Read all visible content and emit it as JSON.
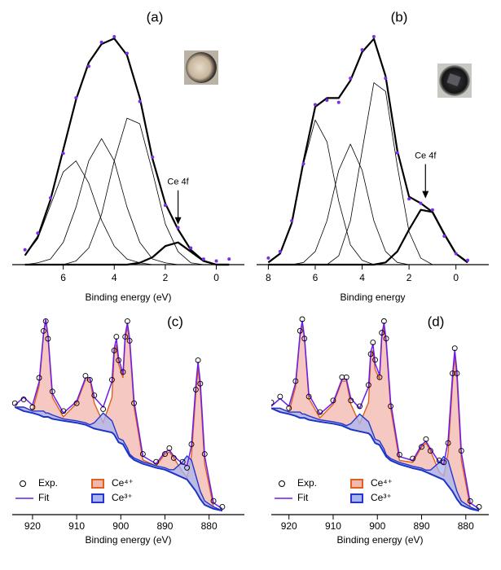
{
  "chart_data": [
    {
      "type": "line",
      "title": "(a)",
      "xlabel": "Binding energy (eV)",
      "xlim": [
        8.0,
        -1.1
      ],
      "xticks": [
        6,
        4,
        2,
        0
      ],
      "annotation": {
        "text": "Ce 4f",
        "x": 1.5
      },
      "x": [
        7.5,
        7.0,
        6.5,
        6.0,
        5.5,
        5.0,
        4.5,
        4.0,
        3.5,
        3.0,
        2.5,
        2.0,
        1.5,
        1.0,
        0.5,
        0.0,
        -0.5
      ],
      "series": [
        {
          "kind": "scatter",
          "color": "#7a2ee8",
          "values": [
            0.08,
            0.17,
            0.36,
            0.6,
            0.9,
            1.07,
            1.2,
            1.23,
            1.14,
            0.88,
            0.58,
            0.32,
            0.2,
            0.09,
            0.03,
            0.02,
            0.03
          ]
        },
        {
          "kind": "line",
          "color": "#000000",
          "width": 2.2,
          "values": [
            0.05,
            0.15,
            0.35,
            0.62,
            0.89,
            1.09,
            1.19,
            1.22,
            1.13,
            0.9,
            0.57,
            0.33,
            0.19,
            0.08,
            0.02,
            0,
            0
          ]
        },
        {
          "kind": "line",
          "color": "#000000",
          "width": 0.8,
          "values": [
            0.05,
            0.14,
            0.32,
            0.5,
            0.56,
            0.44,
            0.24,
            0.1,
            0.03,
            0.01,
            0,
            0,
            0,
            0,
            0,
            0,
            0
          ]
        },
        {
          "kind": "line",
          "color": "#000000",
          "width": 0.8,
          "values": [
            0,
            0.01,
            0.03,
            0.12,
            0.31,
            0.56,
            0.68,
            0.56,
            0.31,
            0.12,
            0.03,
            0.01,
            0,
            0,
            0,
            0,
            0
          ]
        },
        {
          "kind": "line",
          "color": "#000000",
          "width": 0.8,
          "values": [
            0,
            0,
            0,
            0,
            0.02,
            0.09,
            0.27,
            0.56,
            0.79,
            0.76,
            0.5,
            0.22,
            0.07,
            0.01,
            0,
            0,
            0
          ]
        },
        {
          "kind": "line",
          "color": "#000000",
          "width": 2.2,
          "values": [
            0,
            0,
            0,
            0,
            0,
            0,
            0,
            0,
            0,
            0.01,
            0.04,
            0.1,
            0.12,
            0.07,
            0.02,
            0,
            0
          ]
        }
      ]
    },
    {
      "type": "line",
      "title": "(b)",
      "xlabel": "Binding energy",
      "xlim": [
        8.5,
        -1.4
      ],
      "xticks": [
        8,
        6,
        4,
        2,
        0
      ],
      "annotation": {
        "text": "Ce 4f",
        "x": 1.3
      },
      "x": [
        8.0,
        7.5,
        7.0,
        6.5,
        6.0,
        5.5,
        5.0,
        4.5,
        4.0,
        3.5,
        3.0,
        2.5,
        2.0,
        1.5,
        1.0,
        0.5,
        0.0,
        -0.5
      ],
      "series": [
        {
          "kind": "scatter",
          "color": "#7a2ee8",
          "values": [
            0.03,
            0.06,
            0.2,
            0.46,
            0.73,
            0.75,
            0.74,
            0.85,
            0.98,
            1.04,
            0.85,
            0.51,
            0.3,
            0.28,
            0.25,
            0.13,
            0.05,
            0.02
          ]
        },
        {
          "kind": "line",
          "color": "#000000",
          "width": 2.2,
          "values": [
            0.01,
            0.05,
            0.19,
            0.47,
            0.72,
            0.76,
            0.76,
            0.84,
            0.97,
            1.03,
            0.86,
            0.52,
            0.31,
            0.28,
            0.24,
            0.14,
            0.05,
            0.01
          ]
        },
        {
          "kind": "line",
          "color": "#000000",
          "width": 0.8,
          "values": [
            0.01,
            0.05,
            0.19,
            0.46,
            0.66,
            0.56,
            0.29,
            0.09,
            0.02,
            0,
            0,
            0,
            0,
            0,
            0,
            0,
            0,
            0
          ]
        },
        {
          "kind": "line",
          "color": "#000000",
          "width": 0.8,
          "values": [
            0,
            0,
            0,
            0.01,
            0.06,
            0.2,
            0.43,
            0.55,
            0.43,
            0.2,
            0.06,
            0.01,
            0,
            0,
            0,
            0,
            0,
            0
          ]
        },
        {
          "kind": "line",
          "color": "#000000",
          "width": 0.8,
          "values": [
            0,
            0,
            0,
            0,
            0,
            0,
            0.04,
            0.2,
            0.52,
            0.83,
            0.79,
            0.45,
            0.15,
            0.03,
            0,
            0,
            0,
            0
          ]
        },
        {
          "kind": "line",
          "color": "#000000",
          "width": 2.2,
          "values": [
            0,
            0,
            0,
            0,
            0,
            0,
            0,
            0,
            0,
            0,
            0.01,
            0.06,
            0.16,
            0.25,
            0.24,
            0.14,
            0.05,
            0.01
          ]
        }
      ]
    },
    {
      "type": "line",
      "title": "(c)",
      "xlabel": "Binding energy (eV)",
      "xlim": [
        924.6,
        872
      ],
      "xticks": [
        920,
        910,
        900,
        890,
        880
      ],
      "x": [
        924,
        922,
        920,
        918.5,
        917.5,
        917,
        916.5,
        915.5,
        913,
        910,
        908,
        907,
        906,
        904,
        902,
        901.5,
        901,
        900.5,
        899.5,
        899,
        898.5,
        898,
        897,
        895,
        892,
        890,
        889,
        888,
        886,
        885,
        884,
        883,
        882.5,
        882,
        881,
        879,
        877
      ],
      "series": [
        {
          "name": "Exp.",
          "kind": "scatter",
          "color": "#000000",
          "values": [
            0.57,
            0.59,
            0.55,
            0.7,
            0.94,
            0.99,
            0.9,
            0.63,
            0.53,
            0.57,
            0.71,
            0.69,
            0.61,
            0.54,
            0.69,
            0.84,
            0.91,
            0.79,
            0.73,
            0.91,
            0.99,
            0.89,
            0.57,
            0.31,
            0.27,
            0.31,
            0.34,
            0.29,
            0.27,
            0.24,
            0.36,
            0.64,
            0.79,
            0.67,
            0.31,
            0.07,
            0.04
          ]
        },
        {
          "name": "Fit",
          "kind": "line",
          "color": "#6a1cf0",
          "width": 1.5,
          "values": [
            0.56,
            0.6,
            0.56,
            0.68,
            0.93,
            1.0,
            0.92,
            0.62,
            0.52,
            0.58,
            0.7,
            0.7,
            0.6,
            0.55,
            0.68,
            0.85,
            0.9,
            0.8,
            0.72,
            0.92,
            0.98,
            0.9,
            0.58,
            0.3,
            0.26,
            0.32,
            0.33,
            0.3,
            0.26,
            0.25,
            0.35,
            0.66,
            0.78,
            0.68,
            0.3,
            0.06,
            0.03
          ]
        },
        {
          "name": "Ce⁴⁺",
          "kind": "area",
          "color": "#e0601c",
          "fill": "#f2b7ae",
          "fill_to": 4,
          "values": [
            0.55,
            0.55,
            0.53,
            0.66,
            0.92,
            0.99,
            0.91,
            0.6,
            0.5,
            0.57,
            0.69,
            0.69,
            0.57,
            0.47,
            0.6,
            0.82,
            0.87,
            0.77,
            0.7,
            0.9,
            0.96,
            0.88,
            0.55,
            0.28,
            0.25,
            0.31,
            0.32,
            0.29,
            0.22,
            0.19,
            0.3,
            0.62,
            0.75,
            0.64,
            0.26,
            0.04,
            0.02
          ]
        },
        {
          "name": "Ce³⁺",
          "kind": "area",
          "color": "#2536d0",
          "fill": "#aab4ee",
          "fill_to": 4,
          "values": [
            0.55,
            0.55,
            0.53,
            0.53,
            0.53,
            0.52,
            0.52,
            0.51,
            0.49,
            0.48,
            0.47,
            0.46,
            0.47,
            0.52,
            0.48,
            0.45,
            0.42,
            0.39,
            0.38,
            0.36,
            0.34,
            0.31,
            0.29,
            0.27,
            0.25,
            0.24,
            0.23,
            0.23,
            0.27,
            0.3,
            0.28,
            0.2,
            0.16,
            0.12,
            0.07,
            0.04,
            0.02
          ]
        },
        {
          "kind": "line",
          "color": "#1a35c8",
          "width": 2,
          "values": [
            0.55,
            0.53,
            0.52,
            0.51,
            0.5,
            0.5,
            0.5,
            0.49,
            0.48,
            0.47,
            0.46,
            0.45,
            0.44,
            0.43,
            0.42,
            0.41,
            0.39,
            0.37,
            0.36,
            0.34,
            0.32,
            0.3,
            0.28,
            0.26,
            0.24,
            0.23,
            0.22,
            0.21,
            0.19,
            0.18,
            0.15,
            0.12,
            0.1,
            0.08,
            0.05,
            0.03,
            0.02
          ]
        }
      ]
    },
    {
      "type": "line",
      "title": "(d)",
      "xlabel": "Binding energy (eV)",
      "xlim": [
        924,
        874.8
      ],
      "xticks": [
        920,
        910,
        900,
        890,
        880
      ],
      "x": [
        924,
        922,
        920,
        918.5,
        917.5,
        917,
        916.5,
        915.5,
        913,
        910,
        908,
        907,
        906,
        904,
        902,
        901.5,
        901,
        900.5,
        899.5,
        899,
        898.5,
        898,
        897,
        895,
        892,
        890,
        889,
        888,
        886,
        885,
        884,
        883,
        882.5,
        882,
        881,
        879,
        877
      ],
      "series": [
        {
          "name": "Exp.",
          "kind": "scatter",
          "color": "#000000",
          "values": [
            0.58,
            0.61,
            0.55,
            0.69,
            0.95,
            1.01,
            0.91,
            0.61,
            0.53,
            0.59,
            0.71,
            0.71,
            0.59,
            0.56,
            0.67,
            0.83,
            0.89,
            0.8,
            0.71,
            0.94,
            1.0,
            0.91,
            0.56,
            0.31,
            0.29,
            0.35,
            0.39,
            0.33,
            0.28,
            0.27,
            0.37,
            0.73,
            0.86,
            0.73,
            0.33,
            0.07,
            0.04
          ]
        },
        {
          "name": "Fit",
          "kind": "line",
          "color": "#6a1cf0",
          "width": 1.5,
          "values": [
            0.56,
            0.6,
            0.56,
            0.68,
            0.93,
            1.0,
            0.92,
            0.62,
            0.52,
            0.58,
            0.7,
            0.7,
            0.6,
            0.55,
            0.66,
            0.84,
            0.88,
            0.78,
            0.72,
            0.93,
            0.99,
            0.9,
            0.58,
            0.3,
            0.28,
            0.36,
            0.38,
            0.34,
            0.27,
            0.26,
            0.38,
            0.72,
            0.85,
            0.74,
            0.32,
            0.06,
            0.03
          ]
        },
        {
          "name": "Ce⁴⁺",
          "kind": "area",
          "color": "#e0601c",
          "fill": "#f2b7ae",
          "fill_to": 4,
          "values": [
            0.55,
            0.55,
            0.53,
            0.66,
            0.92,
            0.99,
            0.91,
            0.6,
            0.5,
            0.57,
            0.69,
            0.69,
            0.57,
            0.47,
            0.58,
            0.81,
            0.85,
            0.75,
            0.7,
            0.91,
            0.97,
            0.88,
            0.55,
            0.28,
            0.27,
            0.35,
            0.37,
            0.33,
            0.22,
            0.2,
            0.32,
            0.68,
            0.82,
            0.7,
            0.28,
            0.04,
            0.02
          ]
        },
        {
          "name": "Ce³⁺",
          "kind": "area",
          "color": "#2536d0",
          "fill": "#aab4ee",
          "fill_to": 4,
          "values": [
            0.55,
            0.55,
            0.53,
            0.53,
            0.53,
            0.52,
            0.52,
            0.51,
            0.49,
            0.48,
            0.47,
            0.46,
            0.47,
            0.52,
            0.48,
            0.45,
            0.42,
            0.39,
            0.38,
            0.36,
            0.34,
            0.31,
            0.29,
            0.27,
            0.25,
            0.24,
            0.23,
            0.23,
            0.27,
            0.3,
            0.28,
            0.2,
            0.16,
            0.12,
            0.07,
            0.04,
            0.02
          ]
        },
        {
          "kind": "line",
          "color": "#1a35c8",
          "width": 2,
          "values": [
            0.55,
            0.53,
            0.52,
            0.51,
            0.5,
            0.5,
            0.5,
            0.49,
            0.48,
            0.47,
            0.46,
            0.45,
            0.44,
            0.43,
            0.42,
            0.41,
            0.39,
            0.37,
            0.36,
            0.34,
            0.32,
            0.3,
            0.28,
            0.26,
            0.24,
            0.23,
            0.22,
            0.21,
            0.19,
            0.18,
            0.15,
            0.12,
            0.1,
            0.08,
            0.05,
            0.03,
            0.02
          ]
        }
      ]
    }
  ]
}
